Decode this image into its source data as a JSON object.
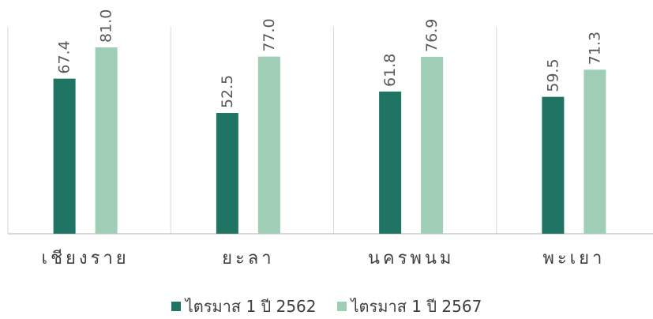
{
  "chart_data": {
    "type": "bar",
    "categories": [
      "เชียงราย",
      "ยะลา",
      "นครพนม",
      "พะเยา"
    ],
    "series": [
      {
        "name": "ไตรมาส 1 ปี 2562",
        "values": [
          67.4,
          52.5,
          61.8,
          59.5
        ],
        "color": "#1f7463"
      },
      {
        "name": "ไตรมาส 1 ปี 2567",
        "values": [
          81.0,
          77.0,
          76.9,
          71.3
        ],
        "color": "#9fcdb5"
      }
    ],
    "data_labels": true,
    "label_format": "one-decimal",
    "ylim": [
      0,
      90
    ],
    "y_axis_visible": false,
    "grid": "vertical-category-separators",
    "legend": "bottom-center"
  }
}
